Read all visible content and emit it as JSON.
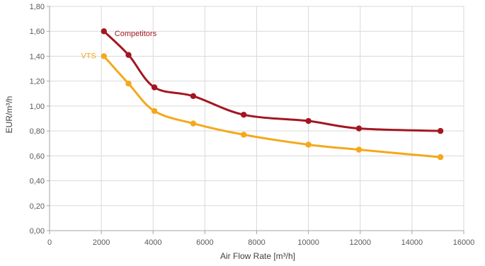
{
  "chart_data": {
    "type": "line",
    "xlabel": "Air Flow Rate [m³/h]",
    "ylabel": "EUR/m³/h",
    "xlim": [
      0,
      16000
    ],
    "ylim": [
      0,
      1.8
    ],
    "x_ticks": [
      "0",
      "2000",
      "4000",
      "6000",
      "8000",
      "10000",
      "12000",
      "14000",
      "16000"
    ],
    "y_ticks": [
      "0,00",
      "0,20",
      "0,40",
      "0,60",
      "0,80",
      "1,00",
      "1,20",
      "1,40",
      "1,60",
      "1,80"
    ],
    "grid": true,
    "series": [
      {
        "name": "Competitors",
        "color": "#a31621",
        "points": [
          {
            "x": 2100,
            "y": 1.6
          },
          {
            "x": 3050,
            "y": 1.41
          },
          {
            "x": 4050,
            "y": 1.15
          },
          {
            "x": 5550,
            "y": 1.08
          },
          {
            "x": 7500,
            "y": 0.93
          },
          {
            "x": 10000,
            "y": 0.88
          },
          {
            "x": 11950,
            "y": 0.82
          },
          {
            "x": 15100,
            "y": 0.8
          }
        ]
      },
      {
        "name": "VTS",
        "color": "#f5a81c",
        "points": [
          {
            "x": 2100,
            "y": 1.4
          },
          {
            "x": 3050,
            "y": 1.18
          },
          {
            "x": 4050,
            "y": 0.96
          },
          {
            "x": 5550,
            "y": 0.86
          },
          {
            "x": 7500,
            "y": 0.77
          },
          {
            "x": 10000,
            "y": 0.69
          },
          {
            "x": 11950,
            "y": 0.65
          },
          {
            "x": 15100,
            "y": 0.59
          }
        ]
      }
    ]
  }
}
